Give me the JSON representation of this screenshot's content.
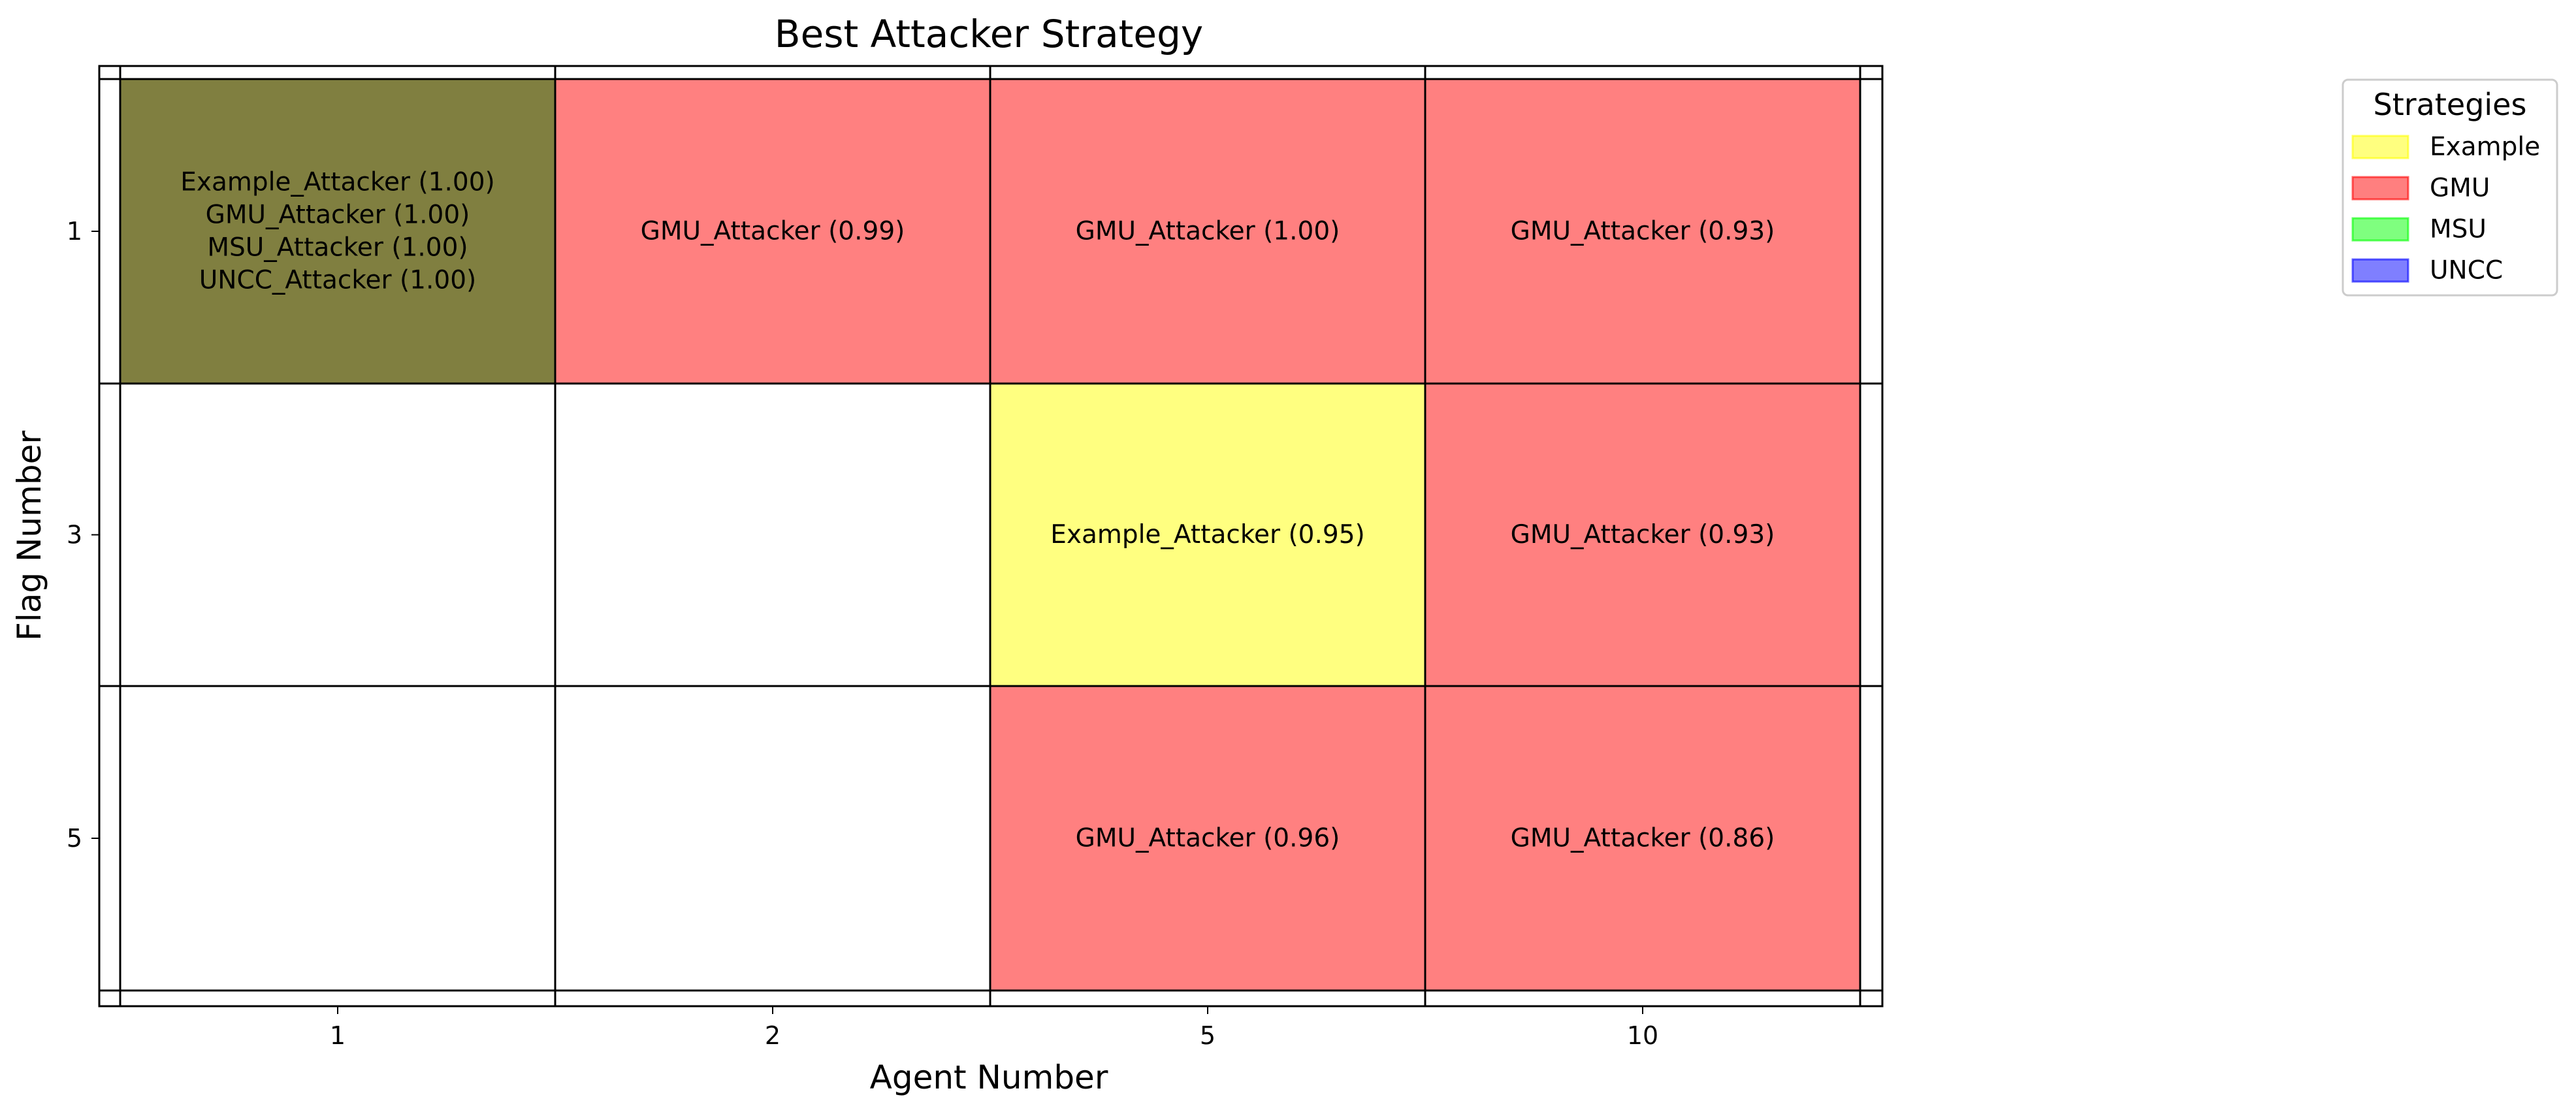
{
  "chart_data": {
    "type": "heatmap",
    "title": "Best Attacker Strategy",
    "xlabel": "Agent Number",
    "ylabel": "Flag Number",
    "x_categories": [
      "1",
      "2",
      "5",
      "10"
    ],
    "y_categories": [
      "1",
      "3",
      "5"
    ],
    "legend": {
      "title": "Strategies",
      "placement": "outside-top-right",
      "entries": [
        {
          "key": "Example",
          "label": "Example",
          "color": "#ffff00"
        },
        {
          "key": "GMU",
          "label": "GMU",
          "color": "#ff0000"
        },
        {
          "key": "MSU",
          "label": "MSU",
          "color": "#00ff00"
        },
        {
          "key": "UNCC",
          "label": "UNCC",
          "color": "#0000ff"
        }
      ]
    },
    "cells": [
      {
        "x": "1",
        "y": "1",
        "strategies": [
          "Example",
          "GMU",
          "MSU",
          "UNCC"
        ],
        "fill": "#807f40",
        "lines": [
          "Example_Attacker (1.00)",
          "GMU_Attacker (1.00)",
          "MSU_Attacker (1.00)",
          "UNCC_Attacker (1.00)"
        ]
      },
      {
        "x": "2",
        "y": "1",
        "strategies": [
          "GMU"
        ],
        "fill": "#ff8080",
        "lines": [
          "GMU_Attacker (0.99)"
        ]
      },
      {
        "x": "5",
        "y": "1",
        "strategies": [
          "GMU"
        ],
        "fill": "#ff8080",
        "lines": [
          "GMU_Attacker (1.00)"
        ]
      },
      {
        "x": "10",
        "y": "1",
        "strategies": [
          "GMU"
        ],
        "fill": "#ff8080",
        "lines": [
          "GMU_Attacker (0.93)"
        ]
      },
      {
        "x": "1",
        "y": "3",
        "strategies": [],
        "fill": "#ffffff",
        "lines": []
      },
      {
        "x": "2",
        "y": "3",
        "strategies": [],
        "fill": "#ffffff",
        "lines": []
      },
      {
        "x": "5",
        "y": "3",
        "strategies": [
          "Example"
        ],
        "fill": "#ffff80",
        "lines": [
          "Example_Attacker (0.95)"
        ]
      },
      {
        "x": "10",
        "y": "3",
        "strategies": [
          "GMU"
        ],
        "fill": "#ff8080",
        "lines": [
          "GMU_Attacker (0.93)"
        ]
      },
      {
        "x": "1",
        "y": "5",
        "strategies": [],
        "fill": "#ffffff",
        "lines": []
      },
      {
        "x": "2",
        "y": "5",
        "strategies": [],
        "fill": "#ffffff",
        "lines": []
      },
      {
        "x": "5",
        "y": "5",
        "strategies": [
          "GMU"
        ],
        "fill": "#ff8080",
        "lines": [
          "GMU_Attacker (0.96)"
        ]
      },
      {
        "x": "10",
        "y": "5",
        "strategies": [
          "GMU"
        ],
        "fill": "#ff8080",
        "lines": [
          "GMU_Attacker (0.86)"
        ]
      }
    ],
    "grid": false
  }
}
